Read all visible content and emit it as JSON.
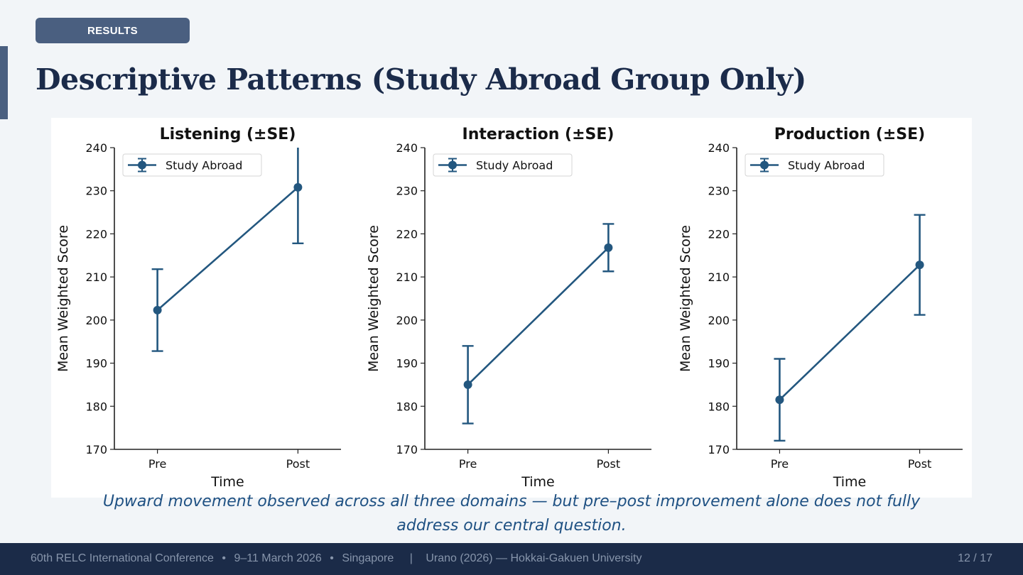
{
  "header": {
    "section_badge": "RESULTS",
    "title": "Descriptive Patterns (Study Abroad Group Only)"
  },
  "colors": {
    "series": "#23577f",
    "accent": "#4a5f80",
    "title": "#1b2b4a",
    "caption": "#1f5183",
    "footer_bg": "#1b2b48"
  },
  "chart_data": [
    {
      "type": "line",
      "title": "Listening (±SE)",
      "xlabel": "Time",
      "ylabel": "Mean Weighted Score",
      "categories": [
        "Pre",
        "Post"
      ],
      "ylim": [
        170,
        240
      ],
      "yticks": [
        170,
        180,
        190,
        200,
        210,
        220,
        230,
        240
      ],
      "legend": {
        "entries": [
          "Study Abroad"
        ],
        "placement": "upper-left"
      },
      "series": [
        {
          "name": "Study Abroad",
          "values": [
            202.3,
            230.8
          ],
          "se": [
            9.5,
            13.0
          ]
        }
      ]
    },
    {
      "type": "line",
      "title": "Interaction (±SE)",
      "xlabel": "Time",
      "ylabel": "Mean Weighted Score",
      "categories": [
        "Pre",
        "Post"
      ],
      "ylim": [
        170,
        240
      ],
      "yticks": [
        170,
        180,
        190,
        200,
        210,
        220,
        230,
        240
      ],
      "legend": {
        "entries": [
          "Study Abroad"
        ],
        "placement": "upper-left"
      },
      "series": [
        {
          "name": "Study Abroad",
          "values": [
            185.0,
            216.8
          ],
          "se": [
            9.0,
            5.5
          ]
        }
      ]
    },
    {
      "type": "line",
      "title": "Production (±SE)",
      "xlabel": "Time",
      "ylabel": "Mean Weighted Score",
      "categories": [
        "Pre",
        "Post"
      ],
      "ylim": [
        170,
        240
      ],
      "yticks": [
        170,
        180,
        190,
        200,
        210,
        220,
        230,
        240
      ],
      "legend": {
        "entries": [
          "Study Abroad"
        ],
        "placement": "upper-left"
      },
      "series": [
        {
          "name": "Study Abroad",
          "values": [
            181.5,
            212.8
          ],
          "se": [
            9.5,
            11.6
          ]
        }
      ]
    }
  ],
  "caption": {
    "line1": "Upward movement observed across all three domains — but pre–post improvement alone does not fully",
    "line2": "address our central question."
  },
  "footer": {
    "conference": "60th RELC International Conference",
    "dates": "9–11 March 2026",
    "location": "Singapore",
    "bullet": "•",
    "pipe": "|",
    "author": "Urano (2026) — Hokkai-Gakuen University",
    "page": "12 / 17"
  }
}
